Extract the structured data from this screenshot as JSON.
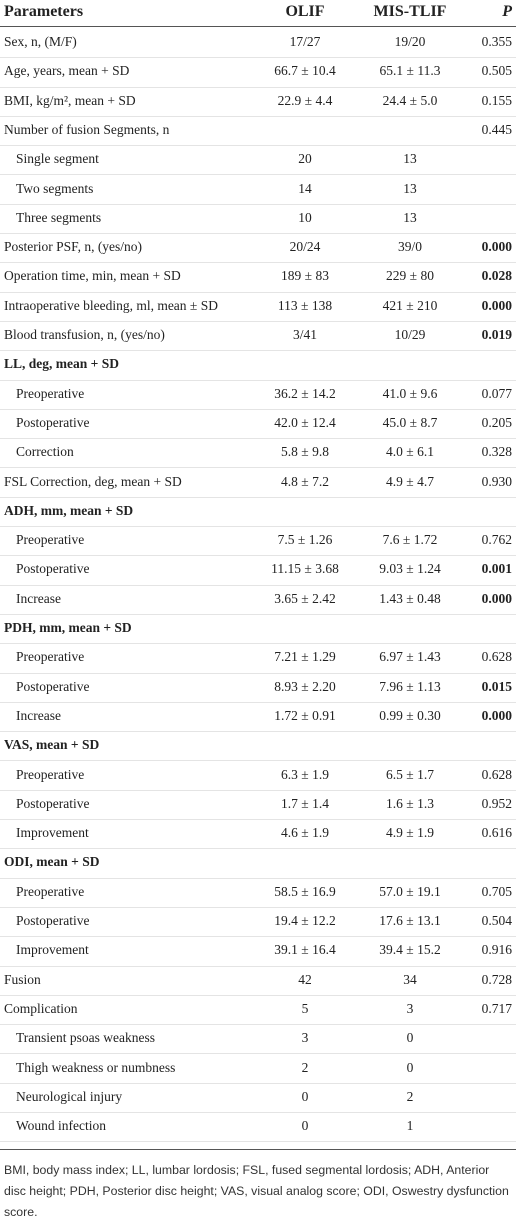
{
  "table": {
    "header": [
      "Parameters",
      "OLIF",
      "MIS-TLIF",
      "P"
    ],
    "rows": [
      [
        "Sex, n, (M/F)",
        "17/27",
        "19/20",
        "0.355"
      ],
      [
        "Age, years, mean + SD",
        "66.7 ± 10.4",
        "65.1 ± 11.3",
        "0.505"
      ],
      [
        "BMI, kg/m², mean + SD",
        "22.9 ± 4.4",
        "24.4 ± 5.0",
        "0.155"
      ],
      [
        "Number of fusion Segments, n",
        null,
        null,
        "0.445"
      ],
      [
        "Single segment",
        "20",
        "13",
        null
      ],
      [
        "Two segments",
        "14",
        "13",
        null
      ],
      [
        "Three segments",
        "10",
        "13",
        null
      ],
      [
        "Posterior PSF, n, (yes/no)",
        "20/24",
        "39/0",
        "0.000"
      ],
      [
        "Operation time, min, mean + SD",
        "189 ± 83",
        "229 ± 80",
        "0.028"
      ],
      [
        "Intraoperative bleeding, ml, mean ± SD",
        "113 ± 138",
        "421 ± 210",
        "0.000"
      ],
      [
        "Blood transfusion, n, (yes/no)",
        "3/41",
        "10/29",
        "0.019"
      ],
      [
        "LL, deg, mean + SD",
        null,
        null,
        null
      ],
      [
        "Preoperative",
        "36.2 ± 14.2",
        "41.0 ± 9.6",
        "0.077"
      ],
      [
        "Postoperative",
        "42.0 ± 12.4",
        "45.0 ± 8.7",
        "0.205"
      ],
      [
        "Correction",
        "5.8 ± 9.8",
        "4.0 ± 6.1",
        "0.328"
      ],
      [
        "FSL Correction, deg, mean + SD",
        "4.8 ± 7.2",
        "4.9 ± 4.7",
        "0.930"
      ],
      [
        "ADH, mm, mean + SD",
        null,
        null,
        null
      ],
      [
        "Preoperative",
        "7.5 ± 1.26",
        "7.6 ± 1.72",
        "0.762"
      ],
      [
        "Postoperative",
        "11.15 ± 3.68",
        "9.03 ± 1.24",
        "0.001"
      ],
      [
        "Increase",
        "3.65 ± 2.42",
        "1.43 ± 0.48",
        "0.000"
      ],
      [
        "PDH, mm, mean + SD",
        null,
        null,
        null
      ],
      [
        "Preoperative",
        "7.21 ± 1.29",
        "6.97 ± 1.43",
        "0.628"
      ],
      [
        "Postoperative",
        "8.93 ± 2.20",
        "7.96 ± 1.13",
        "0.015"
      ],
      [
        "Increase",
        "1.72 ± 0.91",
        "0.99 ± 0.30",
        "0.000"
      ],
      [
        "VAS, mean + SD",
        null,
        null,
        null
      ],
      [
        "Preoperative",
        "6.3 ± 1.9",
        "6.5 ± 1.7",
        "0.628"
      ],
      [
        "Postoperative",
        "1.7 ± 1.4",
        "1.6 ± 1.3",
        "0.952"
      ],
      [
        "Improvement",
        "4.6 ± 1.9",
        "4.9 ± 1.9",
        "0.616"
      ],
      [
        "ODI, mean + SD",
        null,
        null,
        null
      ],
      [
        "Preoperative",
        "58.5 ± 16.9",
        "57.0 ± 19.1",
        "0.705"
      ],
      [
        "Postoperative",
        "19.4 ± 12.2",
        "17.6 ± 13.1",
        "0.504"
      ],
      [
        "Improvement",
        "39.1 ± 16.4",
        "39.4 ± 15.2",
        "0.916"
      ],
      [
        "Fusion",
        "42",
        "34",
        "0.728"
      ],
      [
        "Complication",
        "5",
        "3",
        "0.717"
      ],
      [
        "Transient psoas weakness",
        "3",
        "0",
        null
      ],
      [
        "Thigh weakness or numbness",
        "2",
        "0",
        null
      ],
      [
        "Neurological injury",
        "0",
        "2",
        null
      ],
      [
        "Wound infection",
        "0",
        "1",
        null
      ]
    ],
    "footnote": "BMI, body mass index; LL, lumbar lordosis; FSL, fused segmental lordosis; ADH, Anterior disc height; PDH, Posterior disc height; VAS, visual analog score; ODI, Oswestry dysfunction score."
  }
}
